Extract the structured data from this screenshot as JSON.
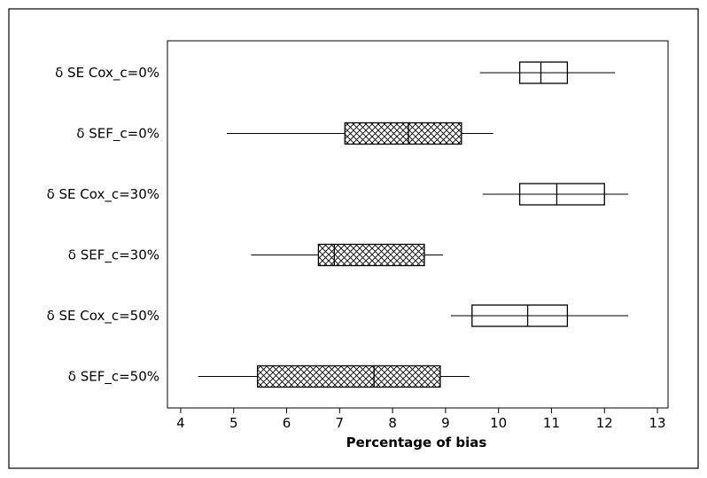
{
  "chart_data": {
    "type": "box",
    "orientation": "horizontal",
    "xlabel": "Percentage of bias",
    "ylabel": "",
    "title": "",
    "xlim": [
      3.75,
      13.2
    ],
    "xticks": [
      4,
      5,
      6,
      7,
      8,
      9,
      10,
      11,
      12,
      13
    ],
    "grid": false,
    "legend": "none",
    "categories": [
      "δ SE Cox_c=0%",
      "δ SEF_c=0%",
      "δ SE Cox_c=30%",
      "δ SEF_c=30%",
      "δ SE Cox_c=50%",
      "δ SEF_c=50%"
    ],
    "boxes": [
      {
        "category": "δ SE Cox_c=0%",
        "min": 9.65,
        "q1": 10.4,
        "median": 10.8,
        "q3": 11.3,
        "max": 12.2,
        "fill": "plain"
      },
      {
        "category": "δ SEF_c=0%",
        "min": 4.87,
        "q1": 7.1,
        "median": 8.3,
        "q3": 9.3,
        "max": 9.9,
        "fill": "crosshatch"
      },
      {
        "category": "δ SE Cox_c=30%",
        "min": 9.7,
        "q1": 10.4,
        "median": 11.1,
        "q3": 12.0,
        "max": 12.45,
        "fill": "plain"
      },
      {
        "category": "δ SEF_c=30%",
        "min": 5.33,
        "q1": 6.6,
        "median": 6.9,
        "q3": 8.6,
        "max": 8.95,
        "fill": "crosshatch"
      },
      {
        "category": "δ SE Cox_c=50%",
        "min": 9.1,
        "q1": 9.5,
        "median": 10.55,
        "q3": 11.3,
        "max": 12.45,
        "fill": "plain"
      },
      {
        "category": "δ SEF_c=50%",
        "min": 4.33,
        "q1": 5.45,
        "median": 7.65,
        "q3": 8.9,
        "max": 9.45,
        "fill": "crosshatch"
      }
    ]
  }
}
